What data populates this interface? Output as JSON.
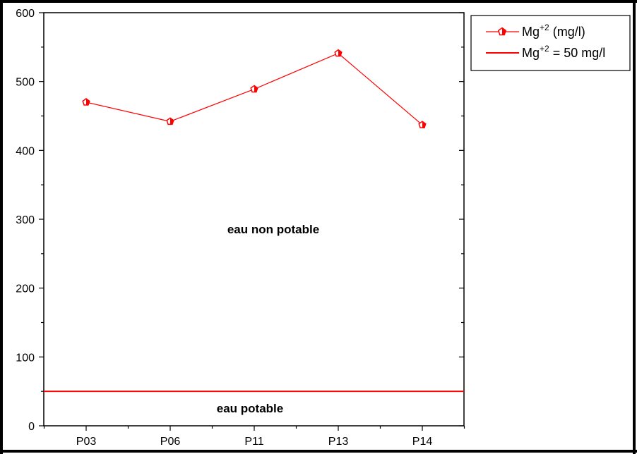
{
  "chart_data": {
    "type": "line",
    "categories": [
      "P03",
      "P06",
      "P11",
      "P13",
      "P14"
    ],
    "series": [
      {
        "name": "(mg/l)",
        "values": [
          470,
          442,
          489,
          541,
          437
        ]
      }
    ],
    "reference_line": {
      "value": 50,
      "label_suffix": "= 50 mg/l"
    },
    "legend": {
      "position": "top-right",
      "mg_text": "Mg",
      "superscript": "+2"
    },
    "annotations": {
      "upper": "eau non potable",
      "lower": "eau potable"
    },
    "y_ticks": [
      "0",
      "100",
      "200",
      "300",
      "400",
      "500",
      "600"
    ],
    "ylim": [
      0,
      600
    ],
    "colors": {
      "series": "#ff0000",
      "axes": "#000000"
    },
    "grid": false
  }
}
